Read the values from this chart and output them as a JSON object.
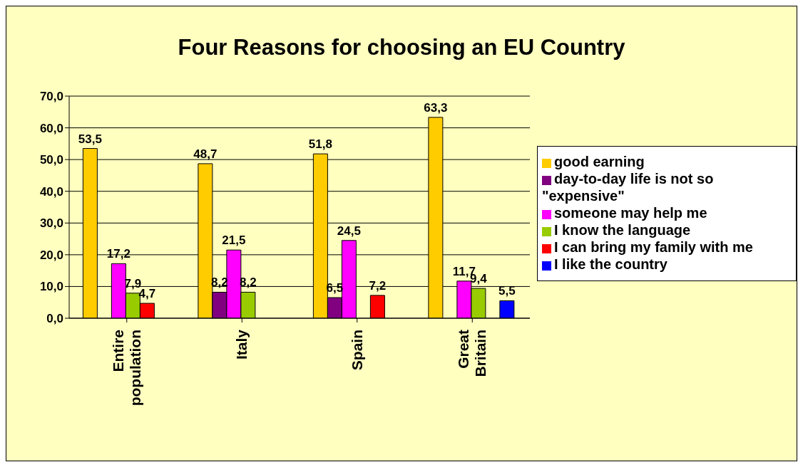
{
  "chart_data": {
    "type": "bar",
    "title": "Four Reasons for choosing an EU Country",
    "categories": [
      "Entire population",
      "Italy",
      "Spain",
      "Great Britain"
    ],
    "series": [
      {
        "name": "good earning",
        "color": "#ffcc00",
        "values": [
          53.5,
          48.7,
          51.8,
          63.3
        ],
        "value_labels": [
          "53,5",
          "48,7",
          "51,8",
          "63,3"
        ]
      },
      {
        "name": "day-to-day life is not so \"expensive\"",
        "color": "#800080",
        "values": [
          null,
          8.2,
          6.5,
          null
        ],
        "value_labels": [
          null,
          "8,2",
          "6,5",
          null
        ]
      },
      {
        "name": "someone may help me",
        "color": "#ff00ff",
        "values": [
          17.2,
          21.5,
          24.5,
          11.7
        ],
        "value_labels": [
          "17,2",
          "21,5",
          "24,5",
          "11,7"
        ]
      },
      {
        "name": "I know the language",
        "color": "#99cc00",
        "values": [
          7.9,
          8.2,
          null,
          9.4
        ],
        "value_labels": [
          "7,9",
          "8,2",
          null,
          "9,4"
        ]
      },
      {
        "name": "I can bring my family with me",
        "color": "#ff0000",
        "values": [
          4.7,
          null,
          7.2,
          null
        ],
        "value_labels": [
          "4,7",
          null,
          "7,2",
          null
        ]
      },
      {
        "name": "I like the country",
        "color": "#0000ff",
        "values": [
          null,
          null,
          null,
          5.5
        ],
        "value_labels": [
          null,
          null,
          null,
          "5,5"
        ]
      }
    ],
    "ylim": [
      0,
      70
    ],
    "yticks": [
      {
        "value": 0,
        "label": "0,0"
      },
      {
        "value": 10,
        "label": "10,0"
      },
      {
        "value": 20,
        "label": "20,0"
      },
      {
        "value": 30,
        "label": "30,0"
      },
      {
        "value": 40,
        "label": "40,0"
      },
      {
        "value": 50,
        "label": "50,0"
      },
      {
        "value": 60,
        "label": "60,0"
      },
      {
        "value": 70,
        "label": "70,0"
      }
    ],
    "grid": "y",
    "legend": "right"
  }
}
